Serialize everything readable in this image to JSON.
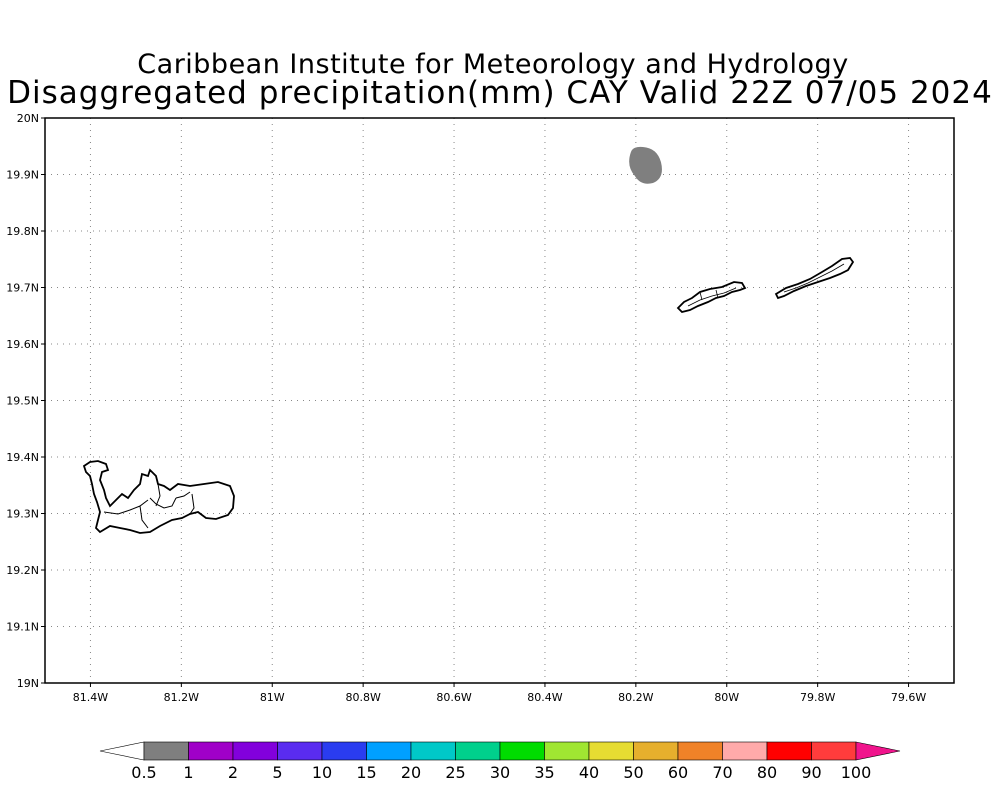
{
  "title": {
    "line1": "Caribbean Institute for Meteorology and Hydrology",
    "line2": "Disaggregated precipitation(mm) CAY Valid 22Z 07/05 2024"
  },
  "map": {
    "lon_range": [
      -81.5,
      -79.5
    ],
    "lat_range": [
      19.0,
      20.0
    ],
    "grid": "dotted",
    "lat_ticks": [
      {
        "value": 19.0,
        "label": "19N"
      },
      {
        "value": 19.1,
        "label": "19.1N"
      },
      {
        "value": 19.2,
        "label": "19.2N"
      },
      {
        "value": 19.3,
        "label": "19.3N"
      },
      {
        "value": 19.4,
        "label": "19.4N"
      },
      {
        "value": 19.5,
        "label": "19.5N"
      },
      {
        "value": 19.6,
        "label": "19.6N"
      },
      {
        "value": 19.7,
        "label": "19.7N"
      },
      {
        "value": 19.8,
        "label": "19.8N"
      },
      {
        "value": 19.9,
        "label": "19.9N"
      },
      {
        "value": 20.0,
        "label": "20N"
      }
    ],
    "lon_ticks": [
      {
        "value": -81.4,
        "label": "81.4W"
      },
      {
        "value": -81.2,
        "label": "81.2W"
      },
      {
        "value": -81.0,
        "label": "81W"
      },
      {
        "value": -80.8,
        "label": "80.8W"
      },
      {
        "value": -80.6,
        "label": "80.6W"
      },
      {
        "value": -80.4,
        "label": "80.4W"
      },
      {
        "value": -80.2,
        "label": "80.2W"
      },
      {
        "value": -80.0,
        "label": "80W"
      },
      {
        "value": -79.8,
        "label": "79.8W"
      },
      {
        "value": -79.6,
        "label": "79.6W"
      }
    ],
    "precip_cells": [
      {
        "lon": -80.18,
        "lat": 19.915,
        "range": "0.5-1",
        "color": "#7f7f7f"
      }
    ]
  },
  "colorbar": {
    "bins": [
      {
        "color": "#ffffff"
      },
      {
        "color": "#7f7f7f"
      },
      {
        "color": "#a000c8"
      },
      {
        "color": "#8200dc"
      },
      {
        "color": "#5a2cf0"
      },
      {
        "color": "#2a3cf0"
      },
      {
        "color": "#00a0ff"
      },
      {
        "color": "#00c8c8"
      },
      {
        "color": "#00d08c"
      },
      {
        "color": "#00dc00"
      },
      {
        "color": "#a0e632"
      },
      {
        "color": "#e6dc32"
      },
      {
        "color": "#e6af2d"
      },
      {
        "color": "#f08228"
      },
      {
        "color": "#ffaaaa"
      },
      {
        "color": "#ff0000"
      },
      {
        "color": "#ff3c3c"
      },
      {
        "color": "#f0148c"
      }
    ],
    "labels": [
      "0.5",
      "1",
      "2",
      "5",
      "10",
      "15",
      "20",
      "25",
      "30",
      "35",
      "40",
      "50",
      "60",
      "70",
      "80",
      "90",
      "100"
    ]
  }
}
